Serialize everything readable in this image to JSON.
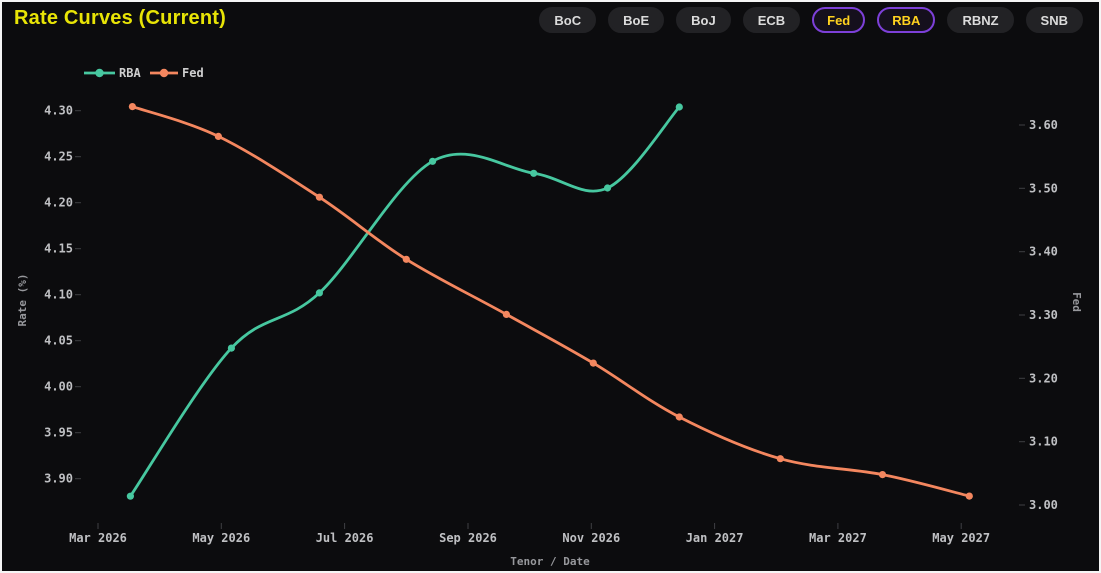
{
  "header": {
    "title": "Rate Curves (Current)",
    "buttons": [
      {
        "label": "BoC",
        "active": false
      },
      {
        "label": "BoE",
        "active": false
      },
      {
        "label": "BoJ",
        "active": false
      },
      {
        "label": "ECB",
        "active": false
      },
      {
        "label": "Fed",
        "active": true
      },
      {
        "label": "RBA",
        "active": true
      },
      {
        "label": "RBNZ",
        "active": false
      },
      {
        "label": "SNB",
        "active": false
      }
    ]
  },
  "colors": {
    "background": "#0c0c0e",
    "title": "#e8e406",
    "accent_purple": "#7d40d8",
    "accent_gold": "#ffd21f",
    "button_bg": "#222225",
    "button_text": "#dcdcdc",
    "axis_text": "#bfc0c3",
    "axis_name": "#97989c",
    "rba_series": "#47c8a0",
    "fed_series": "#f4875f"
  },
  "chart_data": {
    "type": "line",
    "title": "Rate Curves (Current)",
    "xlabel": "Tenor / Date",
    "ylabel_left": "Rate (%)",
    "ylabel_right": "Fed",
    "grid_lines": false,
    "legend_position": "top-left",
    "legend": [
      "RBA",
      "Fed"
    ],
    "x_tick_labels": [
      "Mar 2026",
      "May 2026",
      "Jul 2026",
      "Sep 2026",
      "Nov 2026",
      "Jan 2027",
      "Mar 2027",
      "May 2027"
    ],
    "left_axis": {
      "name": "Rate (%)",
      "min": 3.9,
      "max": 4.3,
      "step": 0.05,
      "ticks": [
        "4.30",
        "4.25",
        "4.20",
        "4.15",
        "4.10",
        "4.05",
        "4.00",
        "3.95",
        "3.90"
      ]
    },
    "right_axis": {
      "name": "Fed",
      "min": 3.0,
      "max": 3.6,
      "step": 0.1,
      "ticks": [
        "3.60",
        "3.50",
        "3.40",
        "3.30",
        "3.20",
        "3.10",
        "3.00"
      ]
    },
    "series": [
      {
        "name": "RBA",
        "axis": "left",
        "color": "#47c8a0",
        "smooth": true,
        "points": [
          {
            "date": "2026-03-17",
            "value": 3.881
          },
          {
            "date": "2026-05-06",
            "value": 4.042
          },
          {
            "date": "2026-06-19",
            "value": 4.102
          },
          {
            "date": "2026-08-14",
            "value": 4.245
          },
          {
            "date": "2026-10-03",
            "value": 4.232
          },
          {
            "date": "2026-11-09",
            "value": 4.216
          },
          {
            "date": "2026-12-14",
            "value": 4.304
          }
        ]
      },
      {
        "name": "Fed",
        "axis": "right",
        "color": "#f4875f",
        "smooth": true,
        "points": [
          {
            "date": "2026-03-18",
            "value": 3.629
          },
          {
            "date": "2026-04-30",
            "value": 3.582
          },
          {
            "date": "2026-06-19",
            "value": 3.486
          },
          {
            "date": "2026-08-01",
            "value": 3.388
          },
          {
            "date": "2026-09-20",
            "value": 3.301
          },
          {
            "date": "2026-11-02",
            "value": 3.224
          },
          {
            "date": "2026-12-14",
            "value": 3.139
          },
          {
            "date": "2027-02-03",
            "value": 3.073
          },
          {
            "date": "2027-03-23",
            "value": 3.048
          },
          {
            "date": "2027-05-05",
            "value": 3.014
          }
        ]
      }
    ]
  }
}
